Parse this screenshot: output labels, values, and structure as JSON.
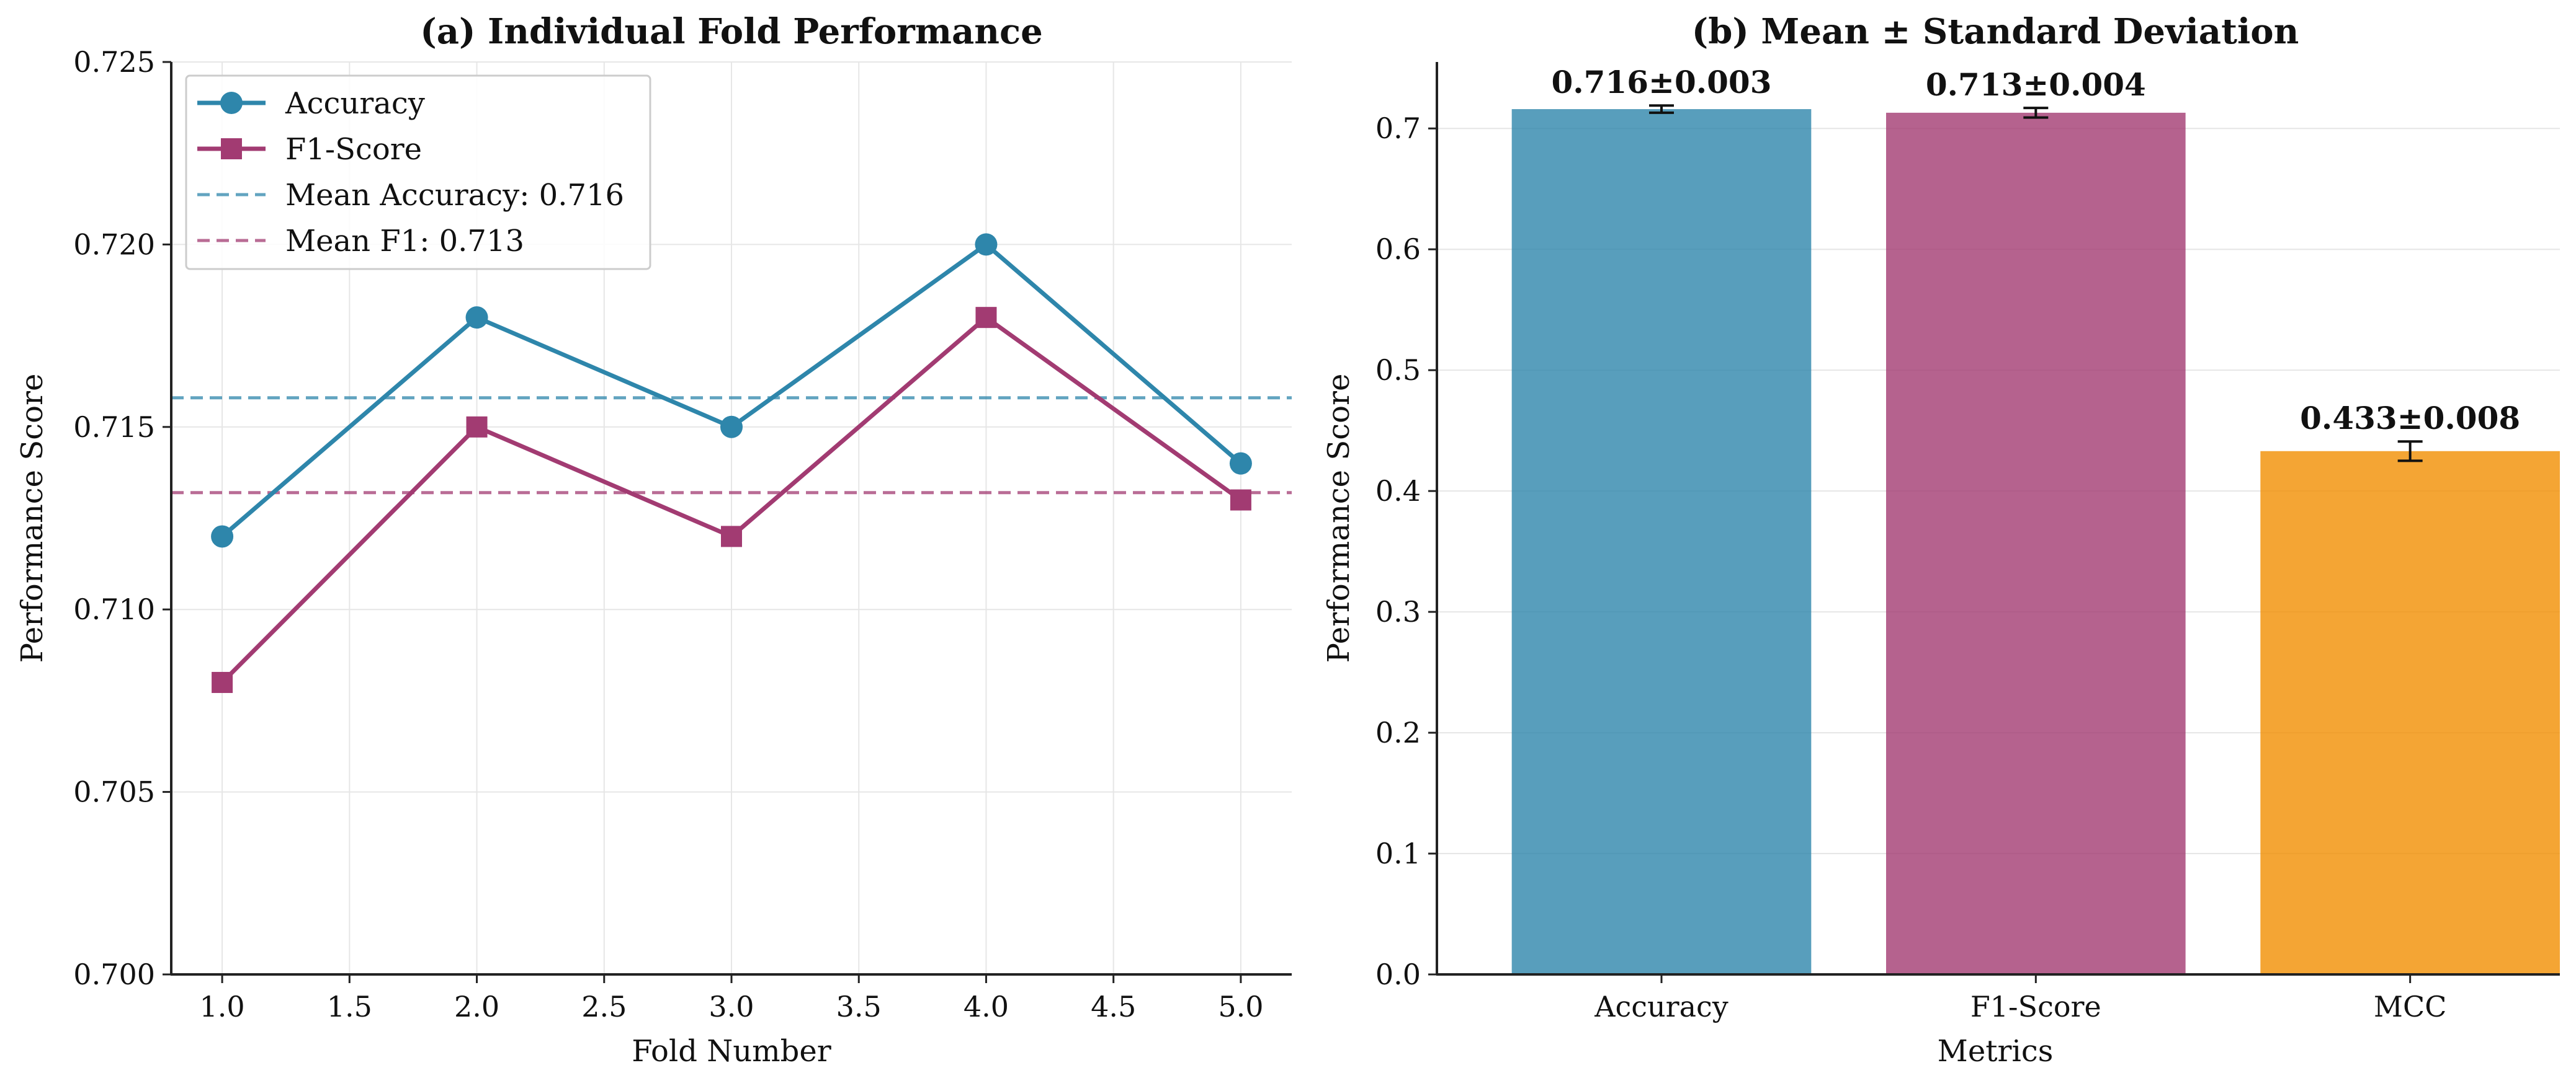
{
  "chart_data": [
    {
      "type": "line",
      "title": "(a) Individual Fold Performance",
      "xlabel": "Fold Number",
      "ylabel": "Performance Score",
      "xlim": [
        0.8,
        5.2
      ],
      "ylim": [
        0.7,
        0.725
      ],
      "xticks": [
        "1.0",
        "1.5",
        "2.0",
        "2.5",
        "3.0",
        "3.5",
        "4.0",
        "4.5",
        "5.0"
      ],
      "yticks": [
        "0.700",
        "0.705",
        "0.710",
        "0.715",
        "0.720",
        "0.725"
      ],
      "grid": true,
      "legend_position": "top-left",
      "x": [
        1,
        2,
        3,
        4,
        5
      ],
      "series": [
        {
          "name": "Accuracy",
          "values": [
            0.712,
            0.718,
            0.715,
            0.72,
            0.714
          ],
          "color": "#2E86AB",
          "marker": "circle"
        },
        {
          "name": "F1-Score",
          "values": [
            0.708,
            0.715,
            0.712,
            0.718,
            0.713
          ],
          "color": "#A23B72",
          "marker": "square"
        }
      ],
      "reference_lines": [
        {
          "label": "Mean Accuracy: 0.716",
          "value": 0.7158,
          "color": "#2E86AB",
          "style": "dashed"
        },
        {
          "label": "Mean F1: 0.713",
          "value": 0.7132,
          "color": "#A23B72",
          "style": "dashed"
        }
      ]
    },
    {
      "type": "bar",
      "title": "(b) Mean ± Standard Deviation",
      "xlabel": "Metrics",
      "ylabel": "Performance Score",
      "ylim": [
        0,
        0.755
      ],
      "yticks": [
        "0.0",
        "0.1",
        "0.2",
        "0.3",
        "0.4",
        "0.5",
        "0.6",
        "0.7"
      ],
      "grid": true,
      "categories": [
        "Accuracy",
        "F1-Score",
        "MCC"
      ],
      "values": [
        0.716,
        0.713,
        0.433
      ],
      "errors": [
        0.003,
        0.004,
        0.008
      ],
      "data_labels": [
        "0.716±0.003",
        "0.713±0.004",
        "0.433±0.008"
      ],
      "colors": [
        "#2E86AB",
        "#A23B72",
        "#F18F01"
      ]
    }
  ]
}
